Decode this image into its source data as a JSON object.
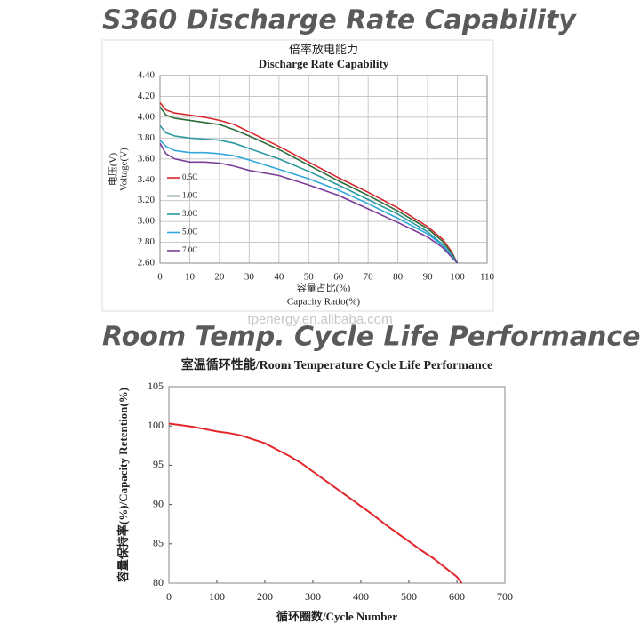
{
  "banners": [
    "S360 Discharge Rate Capability",
    "Room Temp. Cycle Life Performance"
  ],
  "watermark": "tpenergy.en.alibaba.com",
  "chart_data": [
    {
      "type": "line",
      "title": "倍率放电能力",
      "subtitle": "Discharge Rate Capability",
      "ylabel": [
        "电压(V)",
        "Voltage(V)"
      ],
      "xlabel": [
        "容量占比(%)",
        "Capacity Ratio(%)"
      ],
      "x": [
        0,
        2,
        5,
        10,
        15,
        20,
        25,
        30,
        40,
        50,
        60,
        70,
        80,
        90,
        95,
        98,
        100
      ],
      "series": [
        {
          "name": "0.5C",
          "color": "#d9262c",
          "values": [
            4.14,
            4.07,
            4.04,
            4.02,
            4.0,
            3.97,
            3.93,
            3.86,
            3.72,
            3.57,
            3.42,
            3.28,
            3.13,
            2.95,
            2.83,
            2.71,
            2.6
          ]
        },
        {
          "name": "1.0C",
          "color": "#2e6b3a",
          "values": [
            4.1,
            4.02,
            3.99,
            3.97,
            3.95,
            3.93,
            3.88,
            3.82,
            3.69,
            3.54,
            3.39,
            3.25,
            3.1,
            2.93,
            2.81,
            2.7,
            2.6
          ]
        },
        {
          "name": "3.0C",
          "color": "#2a9aa0",
          "values": [
            3.92,
            3.85,
            3.82,
            3.8,
            3.79,
            3.78,
            3.75,
            3.7,
            3.6,
            3.48,
            3.35,
            3.21,
            3.07,
            2.9,
            2.78,
            2.68,
            2.6
          ]
        },
        {
          "name": "5.0C",
          "color": "#2fa7dc",
          "values": [
            3.78,
            3.72,
            3.68,
            3.66,
            3.66,
            3.65,
            3.63,
            3.59,
            3.5,
            3.41,
            3.3,
            3.17,
            3.03,
            2.88,
            2.77,
            2.67,
            2.6
          ]
        },
        {
          "name": "7.0C",
          "color": "#7a3d9a",
          "values": [
            3.75,
            3.65,
            3.6,
            3.57,
            3.57,
            3.56,
            3.53,
            3.49,
            3.44,
            3.35,
            3.25,
            3.12,
            2.99,
            2.85,
            2.75,
            2.66,
            2.6
          ]
        }
      ],
      "xlim": [
        0,
        110
      ],
      "xticks": [
        0,
        10,
        20,
        30,
        40,
        50,
        60,
        70,
        80,
        90,
        100,
        110
      ],
      "ylim": [
        2.6,
        4.4
      ],
      "yticks": [
        {
          "value": 2.6,
          "label": "2.60"
        },
        {
          "value": 2.8,
          "label": "2.80"
        },
        {
          "value": 3.0,
          "label": "3.00"
        },
        {
          "value": 3.2,
          "label": "3.20"
        },
        {
          "value": 3.4,
          "label": "3.40"
        },
        {
          "value": 3.6,
          "label": "3.60"
        },
        {
          "value": 3.8,
          "label": "3.80"
        },
        {
          "value": 4.0,
          "label": "4.00"
        },
        {
          "value": 4.2,
          "label": "4.20"
        },
        {
          "value": 4.4,
          "label": "4.40"
        }
      ],
      "grid": true,
      "legend": "lower left"
    },
    {
      "type": "line",
      "title": "室温循环性能/Room Temperature Cycle Life Performance",
      "ylabel": [
        "容量保持率(%)/Capacity Retention(%)"
      ],
      "xlabel": [
        "循环圈数/Cycle Number"
      ],
      "x": [
        0,
        25,
        50,
        75,
        100,
        125,
        150,
        175,
        200,
        225,
        250,
        275,
        300,
        325,
        350,
        375,
        400,
        425,
        450,
        475,
        500,
        525,
        550,
        575,
        600,
        610
      ],
      "series": [
        {
          "color": "#e0262a",
          "values": [
            100.3,
            100.1,
            99.9,
            99.6,
            99.3,
            99.1,
            98.8,
            98.3,
            97.8,
            97.0,
            96.2,
            95.3,
            94.2,
            93.1,
            92.0,
            90.9,
            89.8,
            88.7,
            87.5,
            86.4,
            85.3,
            84.2,
            83.2,
            82.0,
            80.8,
            80.0
          ]
        }
      ],
      "xlim": [
        0,
        700
      ],
      "xticks": [
        0,
        100,
        200,
        300,
        400,
        500,
        600,
        700
      ],
      "ylim": [
        80,
        105
      ],
      "yticks": [
        80,
        85,
        90,
        95,
        100,
        105
      ],
      "grid": false,
      "legend": "none"
    }
  ]
}
